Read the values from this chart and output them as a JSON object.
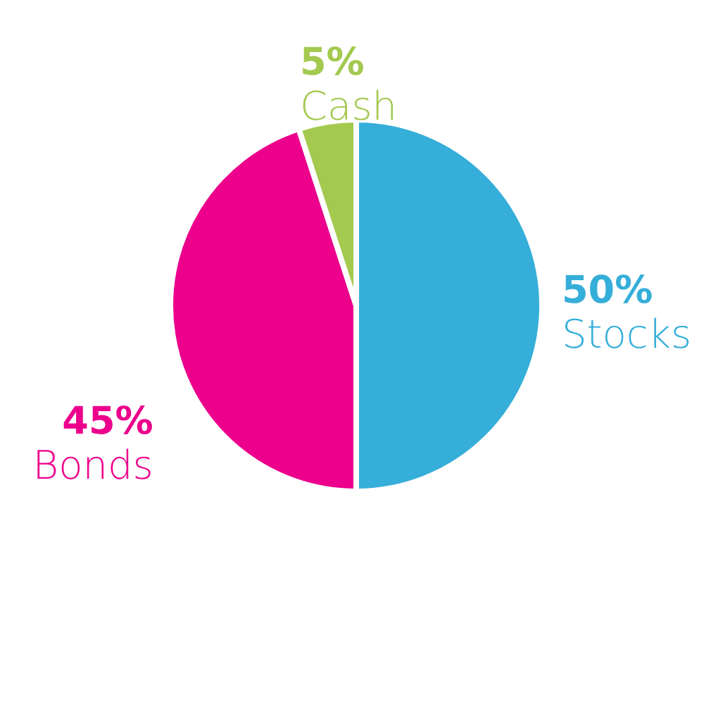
{
  "chart_data": {
    "type": "pie",
    "categories": [
      "Stocks",
      "Bonds",
      "Cash"
    ],
    "values": [
      50,
      45,
      5
    ],
    "colors": [
      "#35aed9",
      "#ec008c",
      "#a3c94f"
    ],
    "value_labels": [
      "50%",
      "45%",
      "5%"
    ]
  }
}
